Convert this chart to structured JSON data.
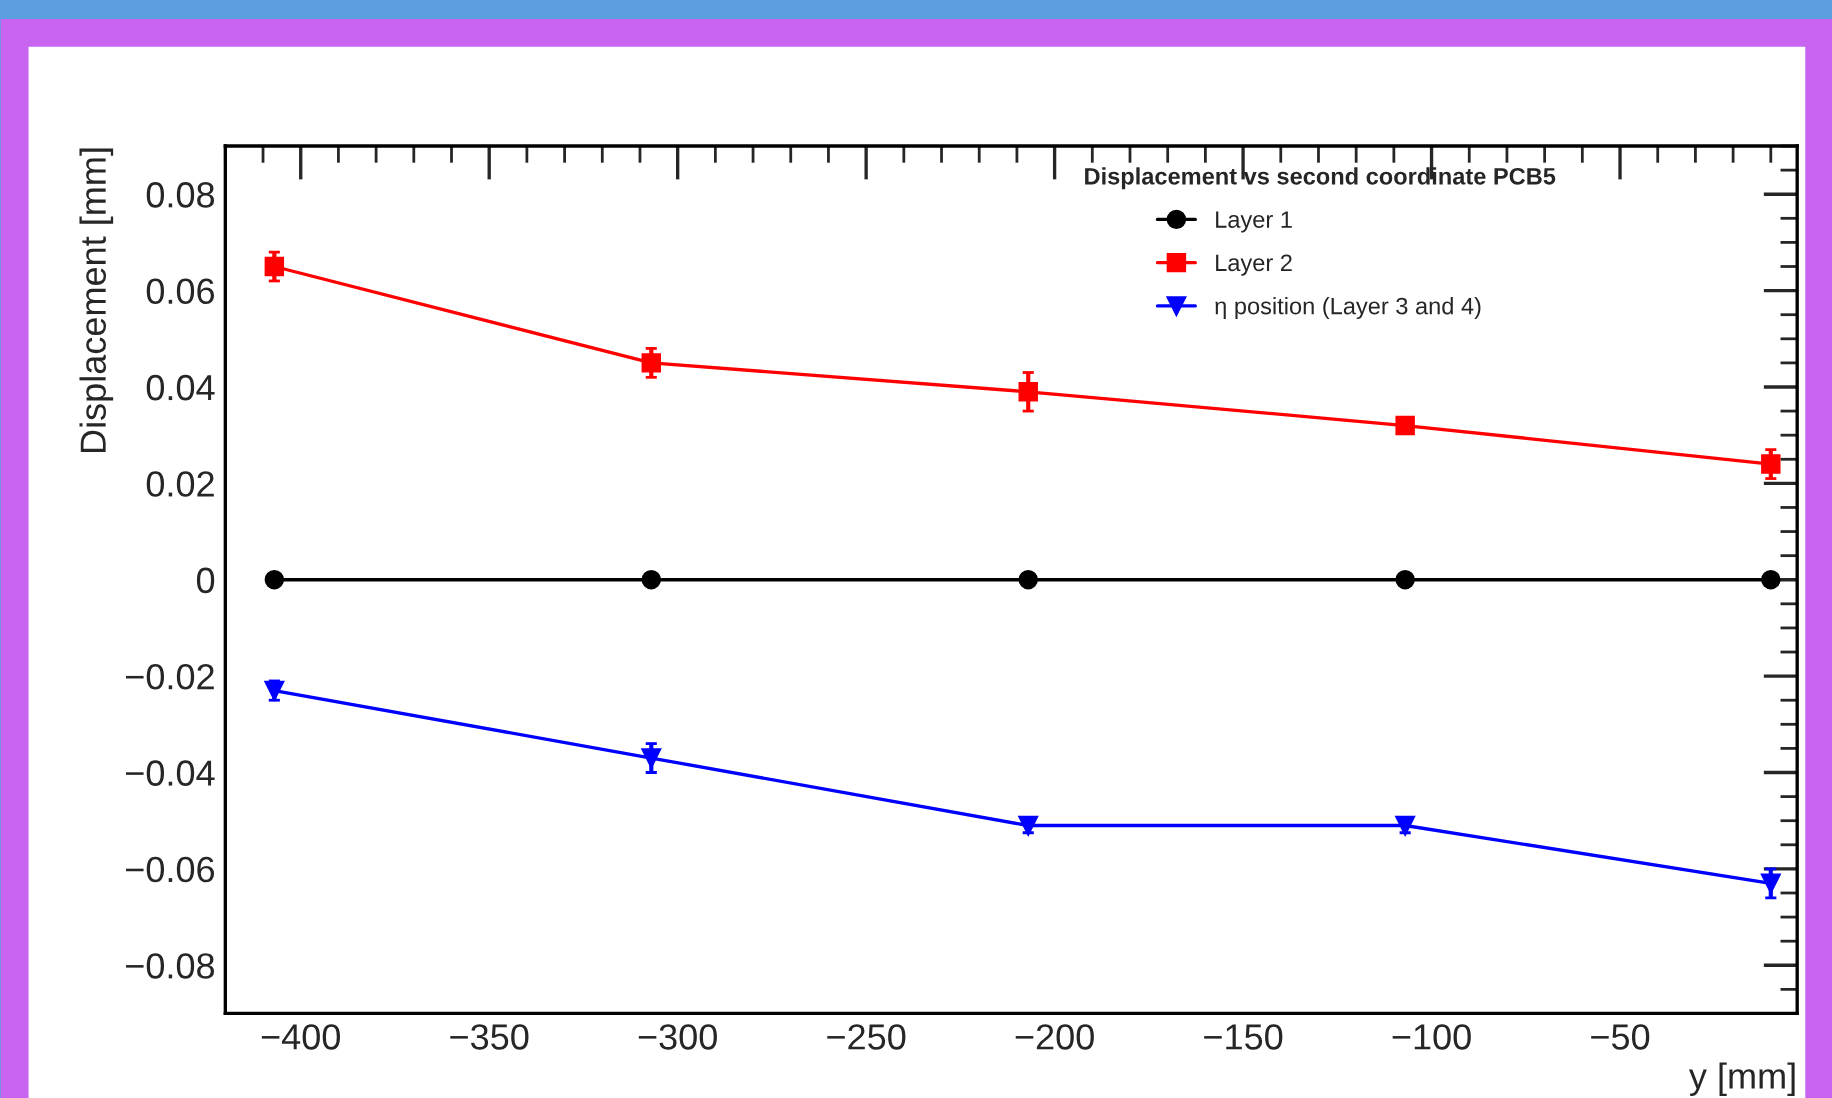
{
  "chart_data": {
    "type": "line",
    "xlabel": "y [mm]",
    "ylabel": "Displacement [mm]",
    "legend_title": "Displacement vs second coordinate PCB5",
    "legend": "top right",
    "grid": false,
    "x": [
      -407,
      -307,
      -207,
      -107,
      -10
    ],
    "xlim": [
      -420,
      -3
    ],
    "xticks": [
      {
        "value": -400,
        "label": "−400"
      },
      {
        "value": -350,
        "label": "−350"
      },
      {
        "value": -300,
        "label": "−300"
      },
      {
        "value": -250,
        "label": "−250"
      },
      {
        "value": -200,
        "label": "−200"
      },
      {
        "value": -150,
        "label": "−150"
      },
      {
        "value": -100,
        "label": "−100"
      },
      {
        "value": -50,
        "label": "−50"
      }
    ],
    "ylim": [
      -0.09,
      0.09
    ],
    "yticks": [
      {
        "value": -0.08,
        "label": "−0.08"
      },
      {
        "value": -0.06,
        "label": "−0.06"
      },
      {
        "value": -0.04,
        "label": "−0.04"
      },
      {
        "value": -0.02,
        "label": "−0.02"
      },
      {
        "value": 0,
        "label": "0"
      },
      {
        "value": 0.02,
        "label": "0.02"
      },
      {
        "value": 0.04,
        "label": "0.04"
      },
      {
        "value": 0.06,
        "label": "0.06"
      },
      {
        "value": 0.08,
        "label": "0.08"
      }
    ],
    "series": [
      {
        "name": "Layer 1",
        "color": "#000000",
        "marker": "circle",
        "values": [
          0,
          0,
          0,
          0,
          0
        ]
      },
      {
        "name": "Layer 2",
        "color": "#ff0000",
        "marker": "square",
        "values": [
          0.065,
          0.045,
          0.039,
          0.032,
          0.024
        ],
        "errors": [
          0.003,
          0.003,
          0.004,
          0.001,
          0.003
        ]
      },
      {
        "name": "η position (Layer 3 and 4)",
        "color": "#0000ff",
        "marker": "triangle",
        "values": [
          -0.023,
          -0.037,
          -0.051,
          -0.051,
          -0.063
        ],
        "errors": [
          0.002,
          0.003,
          0.0015,
          0.0015,
          0.003
        ]
      }
    ]
  }
}
